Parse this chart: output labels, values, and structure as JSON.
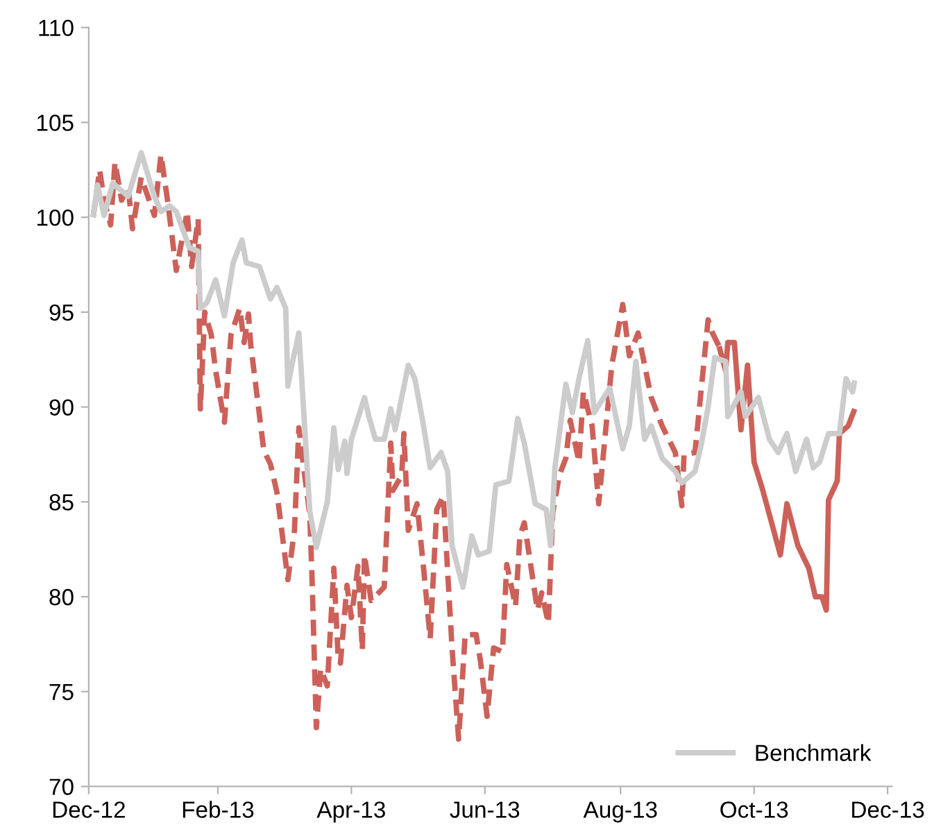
{
  "chart_data": {
    "type": "line",
    "xlim": [
      "2012-12-31",
      "2014-01-02"
    ],
    "xticks": [
      {
        "value": "2012-12-31",
        "label": "Dec-12"
      },
      {
        "value": "2013-02-28",
        "label": "Feb-13"
      },
      {
        "value": "2013-04-30",
        "label": "Apr-13"
      },
      {
        "value": "2013-06-30",
        "label": "Jun-13"
      },
      {
        "value": "2013-08-31",
        "label": "Aug-13"
      },
      {
        "value": "2013-10-31",
        "label": "Oct-13"
      },
      {
        "value": "2013-12-31",
        "label": "Dec-13"
      }
    ],
    "ylim": [
      70,
      110
    ],
    "yticks": [
      70,
      75,
      80,
      85,
      90,
      95,
      100,
      105,
      110
    ],
    "grid": false,
    "legend": "bottom right",
    "marker": "none",
    "series": [
      {
        "color": "#cc6159",
        "line_style": "dashed",
        "x": [
          "2013-01-02",
          "2013-01-05",
          "2013-01-07",
          "2013-01-10",
          "2013-01-12",
          "2013-01-15",
          "2013-01-18",
          "2013-01-20",
          "2013-01-24",
          "2013-01-30",
          "2013-02-02",
          "2013-02-05",
          "2013-02-09",
          "2013-02-14",
          "2013-02-16",
          "2013-02-19",
          "2013-02-20",
          "2013-02-22",
          "2013-02-25",
          "2013-02-27",
          "2013-03-03",
          "2013-03-06",
          "2013-03-10",
          "2013-03-12",
          "2013-03-14",
          "2013-03-15",
          "2013-03-21",
          "2013-03-24",
          "2013-03-27",
          "2013-04-01",
          "2013-04-04",
          "2013-04-06",
          "2013-04-08",
          "2013-04-11",
          "2013-04-12",
          "2013-04-14",
          "2013-04-16",
          "2013-04-19",
          "2013-04-22",
          "2013-04-24",
          "2013-04-25",
          "2013-04-28",
          "2013-04-30",
          "2013-05-03",
          "2013-05-05",
          "2013-05-06",
          "2013-05-09",
          "2013-05-15",
          "2013-05-18",
          "2013-05-19",
          "2013-05-23",
          "2013-05-24",
          "2013-05-26",
          "2013-05-30",
          "2013-06-02",
          "2013-06-05",
          "2013-06-08",
          "2013-06-11",
          "2013-06-15",
          "2013-06-18",
          "2013-06-21",
          "2013-06-26",
          "2013-06-28",
          "2013-07-01",
          "2013-07-04",
          "2013-07-08",
          "2013-07-10",
          "2013-07-14",
          "2013-07-16",
          "2013-07-18",
          "2013-07-20",
          "2013-07-24",
          "2013-07-26",
          "2013-07-29",
          "2013-07-31",
          "2013-08-03",
          "2013-08-06",
          "2013-08-08",
          "2013-08-12",
          "2013-08-14",
          "2013-08-18",
          "2013-08-21",
          "2013-08-27",
          "2013-09-01",
          "2013-09-04",
          "2013-09-08",
          "2013-09-14",
          "2013-09-19",
          "2013-09-25",
          "2013-09-28",
          "2013-09-29",
          "2013-10-04",
          "2013-10-10",
          "2013-10-12",
          "2013-10-15"
        ],
        "values": [
          100.0,
          102.5,
          100.9,
          99.6,
          102.9,
          100.9,
          101.6,
          99.4,
          102.1,
          100.1,
          103.3,
          100.9,
          97.2,
          100.3,
          97.4,
          99.9,
          89.9,
          95.0,
          93.8,
          91.9,
          89.2,
          93.8,
          95.2,
          93.4,
          94.9,
          93.3,
          87.7,
          87.0,
          85.5,
          80.9,
          83.5,
          88.9,
          87.0,
          84.3,
          81.1,
          73.1,
          76.2,
          75.3,
          81.5,
          76.7,
          76.5,
          80.6,
          78.9,
          81.6,
          77.2,
          82.2,
          79.8,
          80.5,
          88.1,
          85.6,
          86.4,
          88.6,
          83.5,
          84.9,
          81.5,
          77.8,
          84.6,
          85.3,
          77.3,
          72.5,
          78.0,
          78.0,
          76.6,
          73.7,
          77.3,
          77.1,
          81.7,
          79.5,
          83.2,
          83.9,
          82.4,
          79.3,
          80.2,
          78.6,
          84.4,
          86.4,
          87.3,
          89.3,
          87.1,
          90.8,
          89.0,
          84.9,
          92.2,
          95.4,
          92.7,
          93.9,
          90.5,
          89.0,
          87.6,
          84.8,
          87.5,
          87.6,
          94.6,
          93.9,
          93.2
        ]
      },
      {
        "color": "#cc6159",
        "line_style": "solid",
        "x": [
          "2013-10-15",
          "2013-10-18",
          "2013-10-19",
          "2013-10-22",
          "2013-10-25",
          "2013-10-28",
          "2013-10-31",
          "2013-11-04",
          "2013-11-12",
          "2013-11-15",
          "2013-11-20",
          "2013-11-25",
          "2013-11-28",
          "2013-12-01",
          "2013-12-03",
          "2013-12-04",
          "2013-12-08",
          "2013-12-09",
          "2013-12-13",
          "2013-12-16"
        ],
        "values": [
          93.2,
          91.9,
          93.4,
          93.4,
          88.8,
          92.2,
          87.1,
          85.6,
          82.2,
          84.9,
          82.7,
          81.5,
          80.0,
          80.0,
          79.3,
          85.1,
          86.1,
          88.6,
          89.0,
          89.9
        ]
      },
      {
        "name": "Benchmark",
        "color": "#cccccc",
        "line_style": "solid",
        "x": [
          "2013-01-02",
          "2013-01-04",
          "2013-01-07",
          "2013-01-11",
          "2013-01-18",
          "2013-01-24",
          "2013-01-30",
          "2013-02-02",
          "2013-02-06",
          "2013-02-09",
          "2013-02-15",
          "2013-02-19",
          "2013-02-20",
          "2013-02-23",
          "2013-02-27",
          "2013-03-03",
          "2013-03-07",
          "2013-03-11",
          "2013-03-13",
          "2013-03-19",
          "2013-03-24",
          "2013-03-27",
          "2013-03-31",
          "2013-04-01",
          "2013-04-03",
          "2013-04-06",
          "2013-04-07",
          "2013-04-11",
          "2013-04-14",
          "2013-04-19",
          "2013-04-22",
          "2013-04-24",
          "2013-04-27",
          "2013-04-28",
          "2013-04-30",
          "2013-05-06",
          "2013-05-08",
          "2013-05-11",
          "2013-05-15",
          "2013-05-18",
          "2013-05-20",
          "2013-05-26",
          "2013-05-29",
          "2013-06-02",
          "2013-06-05",
          "2013-06-10",
          "2013-06-13",
          "2013-06-15",
          "2013-06-20",
          "2013-06-24",
          "2013-06-27",
          "2013-07-02",
          "2013-07-05",
          "2013-07-11",
          "2013-07-15",
          "2013-07-18",
          "2013-07-23",
          "2013-07-28",
          "2013-07-30",
          "2013-08-01",
          "2013-08-06",
          "2013-08-09",
          "2013-08-12",
          "2013-08-16",
          "2013-08-19",
          "2013-08-26",
          "2013-09-01",
          "2013-09-04",
          "2013-09-07",
          "2013-09-11",
          "2013-09-14",
          "2013-09-19",
          "2013-09-25",
          "2013-09-28",
          "2013-10-04",
          "2013-10-07",
          "2013-10-10",
          "2013-10-13",
          "2013-10-18",
          "2013-10-19",
          "2013-10-25",
          "2013-10-27",
          "2013-11-02",
          "2013-11-07",
          "2013-11-11",
          "2013-11-15",
          "2013-11-19",
          "2013-11-24",
          "2013-11-27",
          "2013-11-30",
          "2013-12-04",
          "2013-12-09",
          "2013-12-12",
          "2013-12-15",
          "2013-12-16"
        ],
        "values": [
          100.0,
          101.7,
          100.1,
          101.8,
          101.1,
          103.4,
          101.1,
          100.3,
          100.6,
          100.3,
          98.4,
          98.2,
          95.2,
          95.5,
          96.7,
          94.8,
          97.6,
          98.8,
          97.6,
          97.4,
          95.7,
          96.3,
          95.2,
          91.1,
          92.3,
          93.9,
          92.1,
          84.5,
          82.6,
          85.0,
          88.9,
          86.7,
          88.2,
          86.5,
          88.3,
          90.5,
          89.5,
          88.3,
          88.3,
          89.9,
          88.8,
          92.2,
          91.5,
          89.0,
          86.8,
          87.6,
          86.6,
          82.7,
          80.5,
          83.2,
          82.2,
          82.4,
          85.9,
          86.1,
          89.4,
          88.1,
          84.9,
          84.6,
          82.7,
          86.8,
          91.2,
          89.7,
          91.5,
          93.5,
          89.7,
          91.0,
          87.8,
          89.0,
          92.4,
          88.3,
          89.0,
          87.3,
          86.6,
          86.0,
          86.6,
          88.1,
          90.0,
          92.6,
          92.4,
          89.5,
          90.8,
          89.5,
          90.5,
          88.3,
          87.6,
          88.6,
          86.6,
          88.3,
          86.8,
          87.1,
          88.6,
          88.6,
          91.5,
          90.8,
          91.4
        ]
      }
    ]
  }
}
